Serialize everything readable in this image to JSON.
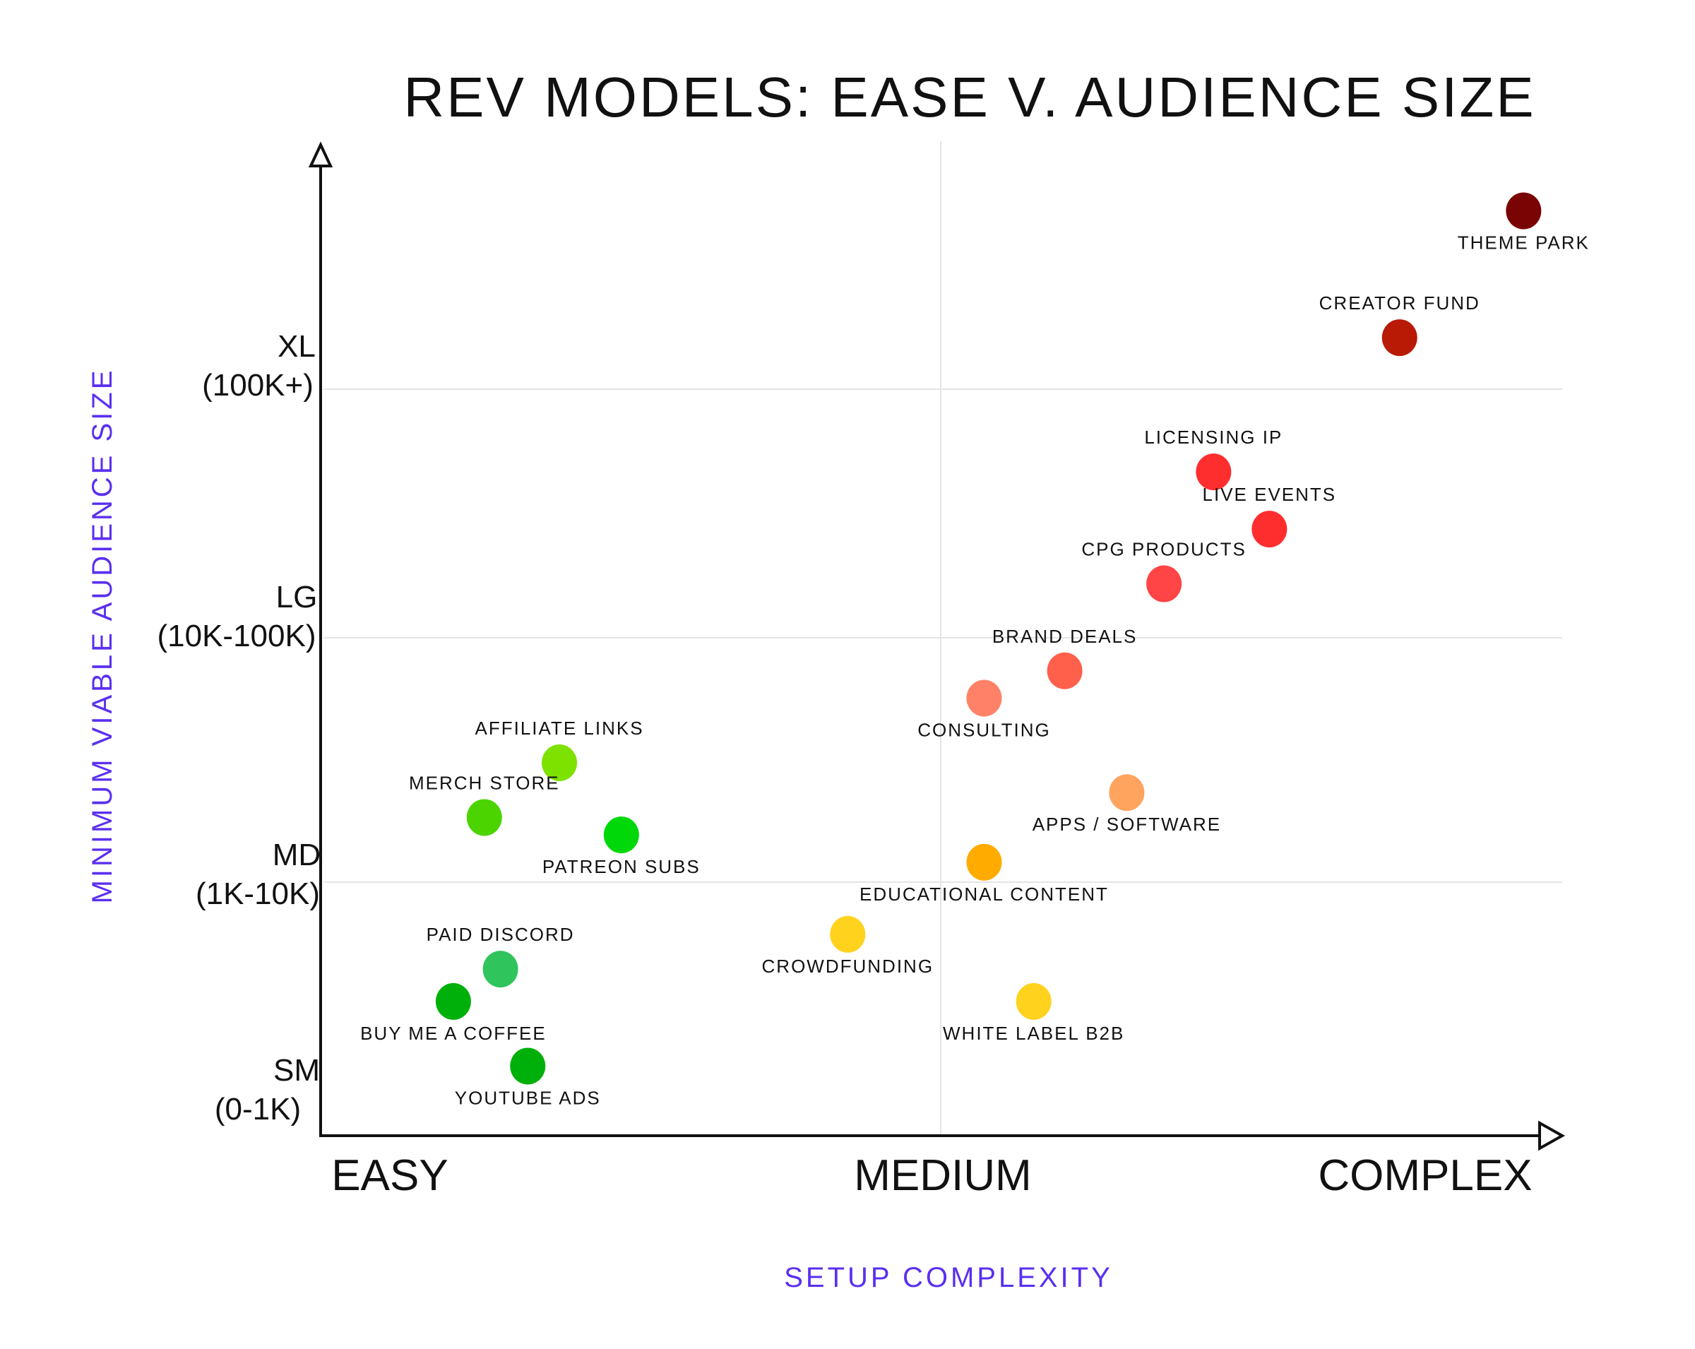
{
  "chart_data": {
    "type": "scatter",
    "title": "REV MODELS: EASE V. AUDIENCE SIZE",
    "xlabel": "SETUP COMPLEXITY",
    "ylabel": "MINIMUM VIABLE AUDIENCE SIZE",
    "xlim": [
      0,
      2.0
    ],
    "ylim": [
      0,
      3.9
    ],
    "grid": true,
    "x_ticks": [
      {
        "value": 0.2,
        "label": "EASY"
      },
      {
        "value": 1.0,
        "label": "MEDIUM"
      },
      {
        "value": 1.78,
        "label": "COMPLEX"
      }
    ],
    "y_ticks": [
      {
        "value": 0.2,
        "label": "SM",
        "sublabel": "(0-1K)"
      },
      {
        "value": 1.0,
        "label": "MD",
        "sublabel": "(1K-10K)"
      },
      {
        "value": 2.0,
        "label": "LG",
        "sublabel": "(10K-100K)"
      },
      {
        "value": 3.0,
        "label": "XL",
        "sublabel": "(100K+)"
      }
    ],
    "points": [
      {
        "label": "THEME PARK",
        "x": 1.94,
        "y": 3.72,
        "color": "#7a0404",
        "label_pos": "below"
      },
      {
        "label": "CREATOR FUND",
        "x": 1.74,
        "y": 3.21,
        "color": "#b81a06",
        "label_pos": "above"
      },
      {
        "label": "LICENSING IP",
        "x": 1.44,
        "y": 2.67,
        "color": "#ff2e2e",
        "label_pos": "above"
      },
      {
        "label": "LIVE EVENTS",
        "x": 1.53,
        "y": 2.44,
        "color": "#ff2e2e",
        "label_pos": "above"
      },
      {
        "label": "CPG PRODUCTS",
        "x": 1.36,
        "y": 2.22,
        "color": "#ff4545",
        "label_pos": "above"
      },
      {
        "label": "BRAND DEALS",
        "x": 1.2,
        "y": 1.87,
        "color": "#ff604c",
        "label_pos": "above"
      },
      {
        "label": "CONSULTING",
        "x": 1.07,
        "y": 1.76,
        "color": "#ff8268",
        "label_pos": "below"
      },
      {
        "label": "APPS / SOFTWARE",
        "x": 1.3,
        "y": 1.38,
        "color": "#ffa45e",
        "label_pos": "below"
      },
      {
        "label": "EDUCATIONAL CONTENT",
        "x": 1.07,
        "y": 1.1,
        "color": "#ffab00",
        "label_pos": "below"
      },
      {
        "label": "CROWDFUNDING",
        "x": 0.85,
        "y": 0.81,
        "color": "#ffd21e",
        "label_pos": "below"
      },
      {
        "label": "WHITE LABEL B2B",
        "x": 1.15,
        "y": 0.54,
        "color": "#ffd21e",
        "label_pos": "below"
      },
      {
        "label": "AFFILIATE LINKS",
        "x": 0.385,
        "y": 1.5,
        "color": "#7de200",
        "label_pos": "above"
      },
      {
        "label": "MERCH STORE",
        "x": 0.264,
        "y": 1.28,
        "color": "#4cd400",
        "label_pos": "above"
      },
      {
        "label": "PATREON SUBS",
        "x": 0.485,
        "y": 1.21,
        "color": "#00d80a",
        "label_pos": "below"
      },
      {
        "label": "PAID DISCORD",
        "x": 0.29,
        "y": 0.67,
        "color": "#30c45c",
        "label_pos": "above"
      },
      {
        "label": "BUY ME A COFFEE",
        "x": 0.214,
        "y": 0.54,
        "color": "#00b00a",
        "label_pos": "below"
      },
      {
        "label": "YOUTUBE ADS",
        "x": 0.334,
        "y": 0.28,
        "color": "#00b00a",
        "label_pos": "below"
      }
    ]
  }
}
